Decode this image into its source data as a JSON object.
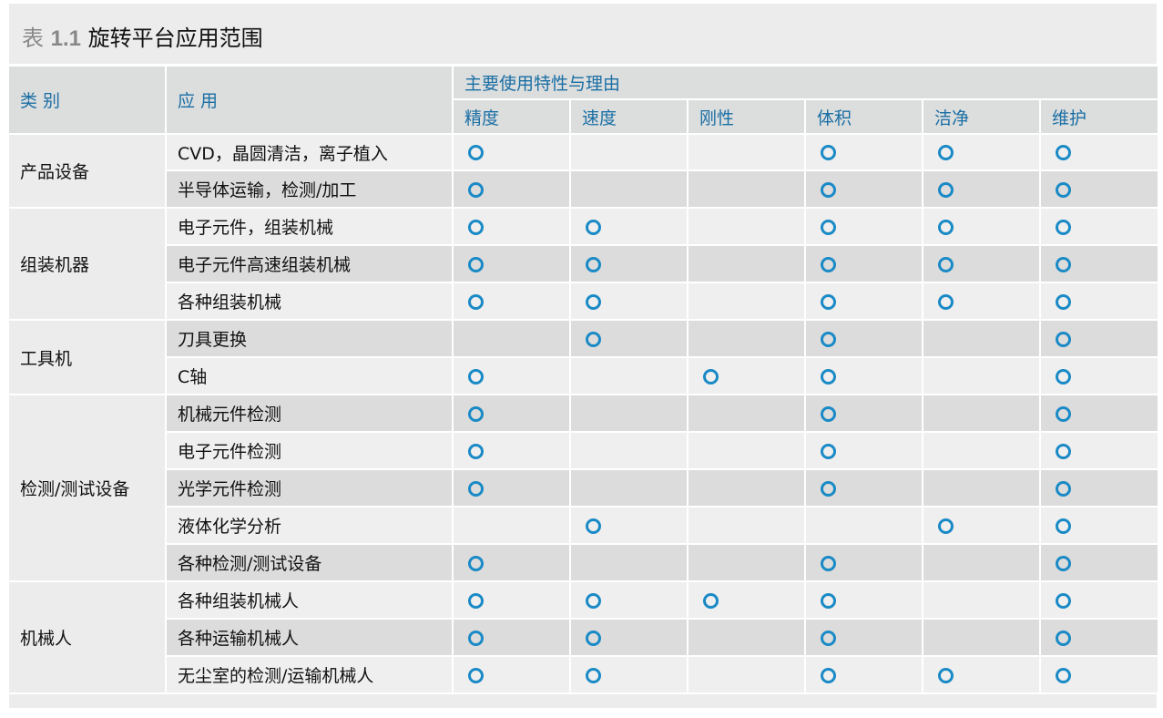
{
  "title": {
    "label": "表",
    "number": "1.1",
    "text": "旋转平台应用范围"
  },
  "headers": {
    "category": "类 别",
    "application": "应 用",
    "group": "主要使用特性与理由",
    "columns": [
      "精度",
      "速度",
      "刚性",
      "体积",
      "洁净",
      "维护"
    ]
  },
  "mark_color": "#1a8ac6",
  "categories": [
    {
      "name": "产品设备",
      "rows": [
        {
          "app": "CVD，晶圆清洁，离子植入",
          "marks": [
            1,
            0,
            0,
            1,
            1,
            1
          ]
        },
        {
          "app": "半导体运输，检测/加工",
          "marks": [
            1,
            0,
            0,
            1,
            1,
            1
          ]
        }
      ]
    },
    {
      "name": "组装机器",
      "rows": [
        {
          "app": "电子元件，组装机械",
          "marks": [
            1,
            1,
            0,
            1,
            1,
            1
          ]
        },
        {
          "app": "电子元件高速组装机械",
          "marks": [
            1,
            1,
            0,
            1,
            1,
            1
          ]
        },
        {
          "app": "各种组装机械",
          "marks": [
            1,
            1,
            0,
            1,
            1,
            1
          ]
        }
      ]
    },
    {
      "name": "工具机",
      "rows": [
        {
          "app": "刀具更换",
          "marks": [
            0,
            1,
            0,
            1,
            0,
            1
          ]
        },
        {
          "app": "C轴",
          "marks": [
            1,
            0,
            1,
            1,
            0,
            1
          ]
        }
      ]
    },
    {
      "name": "检测/测试设备",
      "rows": [
        {
          "app": "机械元件检测",
          "marks": [
            1,
            0,
            0,
            1,
            0,
            1
          ]
        },
        {
          "app": "电子元件检测",
          "marks": [
            1,
            0,
            0,
            1,
            0,
            1
          ]
        },
        {
          "app": "光学元件检测",
          "marks": [
            1,
            0,
            0,
            1,
            0,
            1
          ]
        },
        {
          "app": "液体化学分析",
          "marks": [
            0,
            1,
            0,
            0,
            1,
            1
          ]
        },
        {
          "app": "各种检测/测试设备",
          "marks": [
            1,
            0,
            0,
            1,
            0,
            1
          ]
        }
      ]
    },
    {
      "name": "机械人",
      "rows": [
        {
          "app": "各种组装机械人",
          "marks": [
            1,
            1,
            1,
            1,
            0,
            1
          ]
        },
        {
          "app": "各种运输机械人",
          "marks": [
            1,
            1,
            0,
            1,
            0,
            1
          ]
        },
        {
          "app": "无尘室的检测/运输机械人",
          "marks": [
            1,
            1,
            0,
            1,
            1,
            1
          ]
        }
      ]
    }
  ]
}
